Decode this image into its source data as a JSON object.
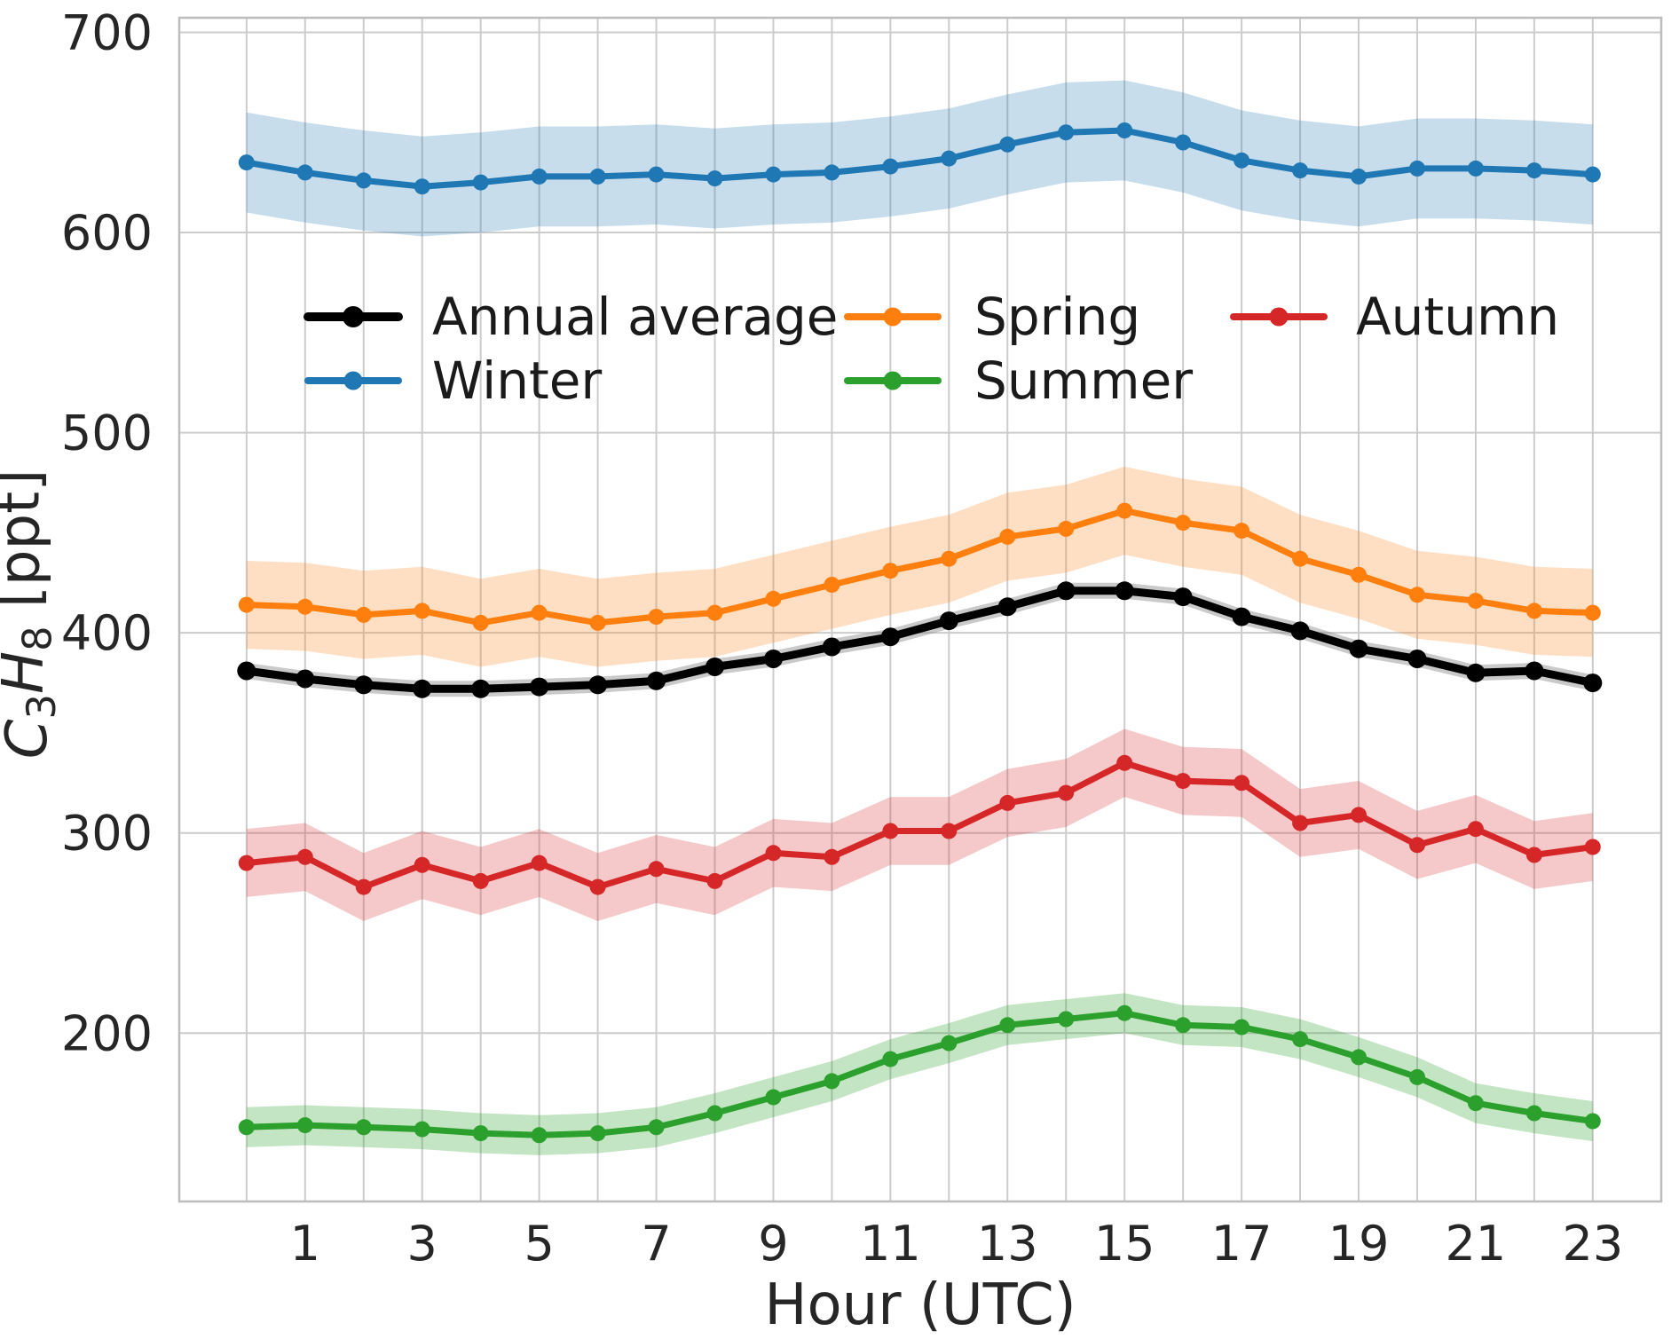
{
  "figure": {
    "title": "",
    "xlabel": "Hour (UTC)",
    "ylabel": "C3H8 [ppt]"
  },
  "chart_data": {
    "type": "line",
    "title": "",
    "xlabel": "Hour (UTC)",
    "ylabel": "C3H8 [ppt]",
    "ylabel_parts": [
      {
        "t": "C",
        "italic": true
      },
      {
        "t": "3",
        "sub": true
      },
      {
        "t": "H",
        "italic": true
      },
      {
        "t": "8",
        "sub": true
      },
      {
        "t": " [ppt]"
      }
    ],
    "x": [
      0,
      1,
      2,
      3,
      4,
      5,
      6,
      7,
      8,
      9,
      10,
      11,
      12,
      13,
      14,
      15,
      16,
      17,
      18,
      19,
      20,
      21,
      22,
      23
    ],
    "x_tick_labels": [
      1,
      3,
      5,
      7,
      9,
      11,
      13,
      15,
      17,
      19,
      21,
      23
    ],
    "y_tick_labels": [
      200,
      300,
      400,
      500,
      600,
      700
    ],
    "xlim": [
      -1.15,
      24.17
    ],
    "ylim": [
      115.9,
      707.3
    ],
    "grid": true,
    "background": "#ffffff",
    "grid_color": "#cccccc",
    "spine_color": "#bdbdbd",
    "text_color": "#262626",
    "legend": {
      "position": "upper center",
      "ncol": 3,
      "frame": false
    },
    "series": [
      {
        "name": "Annual average",
        "color": "#000000",
        "band_color": "#8a8a8a",
        "band_alpha": 0.45,
        "band_halfwidth": 4,
        "linewidth": 9,
        "marker_r": 10.5,
        "values": [
          381,
          377,
          374,
          372,
          372,
          373,
          374,
          376,
          383,
          387,
          393,
          398,
          406,
          413,
          421,
          421,
          418,
          408,
          401,
          392,
          387,
          380,
          381,
          375
        ]
      },
      {
        "name": "Winter",
        "color": "#1f77b4",
        "band_color": "#1f77b4",
        "band_alpha": 0.25,
        "band_halfwidth": 25,
        "linewidth": 7,
        "marker_r": 9,
        "values": [
          635,
          630,
          626,
          623,
          625,
          628,
          628,
          629,
          627,
          629,
          630,
          633,
          637,
          644,
          650,
          651,
          645,
          636,
          631,
          628,
          632,
          632,
          631,
          629
        ]
      },
      {
        "name": "Spring",
        "color": "#ff7f0e",
        "band_color": "#ff7f0e",
        "band_alpha": 0.25,
        "band_halfwidth": 22,
        "linewidth": 7,
        "marker_r": 9,
        "values": [
          414,
          413,
          409,
          411,
          405,
          410,
          405,
          408,
          410,
          417,
          424,
          431,
          437,
          448,
          452,
          461,
          455,
          451,
          437,
          429,
          419,
          416,
          411,
          410
        ]
      },
      {
        "name": "Summer",
        "color": "#2ca02c",
        "band_color": "#2ca02c",
        "band_alpha": 0.28,
        "band_halfwidth": 10,
        "linewidth": 7,
        "marker_r": 9,
        "values": [
          153,
          154,
          153,
          152,
          150,
          149,
          150,
          153,
          160,
          168,
          176,
          187,
          195,
          204,
          207,
          210,
          204,
          203,
          197,
          188,
          178,
          165,
          160,
          156
        ]
      },
      {
        "name": "Autumn",
        "color": "#d62728",
        "band_color": "#d62728",
        "band_alpha": 0.25,
        "band_halfwidth": 17,
        "linewidth": 7,
        "marker_r": 9,
        "values": [
          285,
          288,
          273,
          284,
          276,
          285,
          273,
          282,
          276,
          290,
          288,
          301,
          301,
          315,
          320,
          335,
          326,
          325,
          305,
          309,
          294,
          302,
          289,
          293
        ]
      }
    ]
  }
}
